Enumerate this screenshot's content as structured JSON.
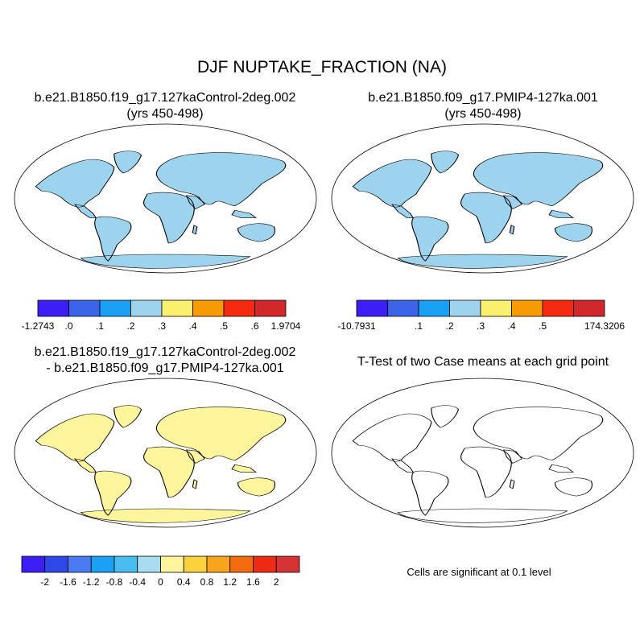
{
  "figure": {
    "title": "DJF NUPTAKE_FRACTION (NA)",
    "note": "Cells are significant at 0.1 level"
  },
  "panels": [
    {
      "id": "control",
      "title_line1": "b.e21.B1850.f19_g17.127kaControl-2deg.002",
      "title_line2": "(yrs 450-498)",
      "colorbar": {
        "colors": [
          "#3b1ff5",
          "#3c64e6",
          "#1aa0f5",
          "#9ed3ee",
          "#fbf06e",
          "#f79b00",
          "#f52a0f",
          "#d2282c"
        ],
        "labels": [
          "-1.2743",
          ".0",
          ".1",
          ".2",
          ".3",
          ".4",
          ".5",
          ".6",
          "1.9704"
        ]
      }
    },
    {
      "id": "pmip4",
      "title_line1": "b.e21.B1850.f09_g17.PMIP4-127ka.001",
      "title_line2": "(yrs 450-498)",
      "colorbar": {
        "colors": [
          "#3b1ff5",
          "#3c64e6",
          "#1aa0f5",
          "#9ed3ee",
          "#fbf06e",
          "#f79b00",
          "#f52a0f",
          "#d2282c"
        ],
        "labels": [
          "-10.7931",
          "",
          ".1",
          ".2",
          ".3",
          ".4",
          ".5",
          "",
          "174.3206"
        ]
      }
    },
    {
      "id": "difference",
      "title_line1": "b.e21.B1850.f19_g17.127kaControl-2deg.002",
      "title_line2": "- b.e21.B1850.f09_g17.PMIP4-127ka.001",
      "colorbar": {
        "colors": [
          "#3b1ff5",
          "#2f49e8",
          "#4a7bf0",
          "#1aa0f5",
          "#47bdf0",
          "#a8dcf0",
          "#fef59c",
          "#fbd23c",
          "#f8a51e",
          "#f56c0e",
          "#ee2a14",
          "#d63434"
        ],
        "labels": [
          "-2",
          "-1.6",
          "-1.2",
          "-0.8",
          "-0.4",
          "0",
          "0.4",
          "0.8",
          "1.2",
          "1.6",
          "2"
        ]
      }
    },
    {
      "id": "ttest",
      "title_line1": "T-Test of two Case means at each grid point",
      "significant_color": "#ff0000"
    }
  ]
}
